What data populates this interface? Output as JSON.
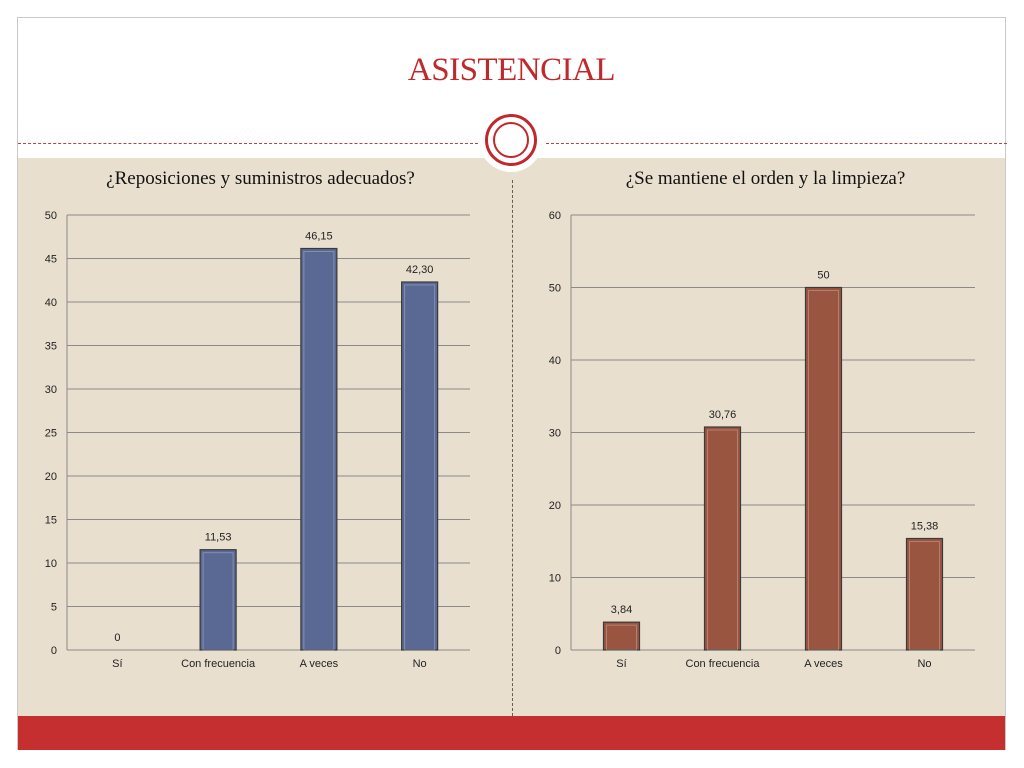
{
  "slide": {
    "title": "ASISTENCIAL"
  },
  "colors": {
    "title": "#c0282b",
    "body_background": "#e8dfcf",
    "footer": "#c62f2f",
    "left_bars": "#5a6894",
    "right_bars": "#9a5540"
  },
  "chart_data": [
    {
      "type": "bar",
      "title": "¿Reposiciones y suministros adecuados?",
      "categories": [
        "Sí",
        "Con frecuencia",
        "A veces",
        "No"
      ],
      "values": [
        0,
        11.53,
        46.15,
        42.3
      ],
      "value_labels": [
        "0",
        "11,53",
        "46,15",
        "42,30"
      ],
      "ylim": [
        0,
        50
      ],
      "yticks": [
        0,
        5,
        10,
        15,
        20,
        25,
        30,
        35,
        40,
        45,
        50
      ],
      "grid": true,
      "legend": "none"
    },
    {
      "type": "bar",
      "title": "¿Se mantiene el orden y la limpieza?",
      "categories": [
        "Sí",
        "Con frecuencia",
        "A veces",
        "No"
      ],
      "values": [
        3.84,
        30.76,
        50,
        15.38
      ],
      "value_labels": [
        "3,84",
        "30,76",
        "50",
        "15,38"
      ],
      "ylim": [
        0,
        60
      ],
      "yticks": [
        0,
        10,
        20,
        30,
        40,
        50,
        60
      ],
      "grid": true,
      "legend": "none"
    }
  ]
}
